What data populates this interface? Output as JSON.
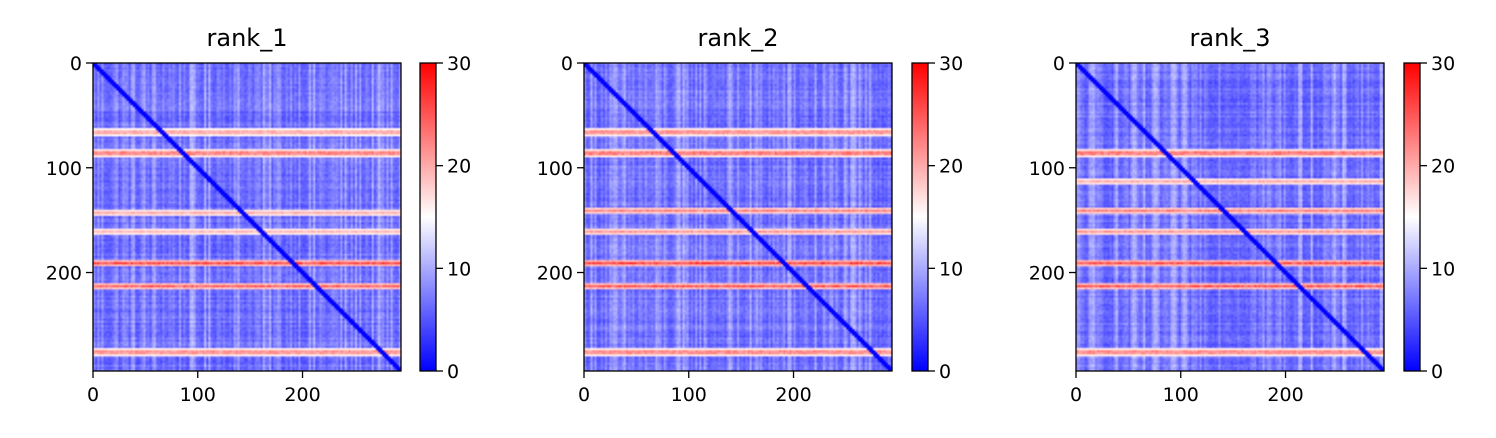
{
  "chart_data": [
    {
      "type": "heatmap",
      "title": "rank_1",
      "xlabel": "",
      "ylabel": "",
      "n": 294,
      "x_ticks": [
        0,
        100,
        200
      ],
      "y_ticks": [
        0,
        100,
        200
      ],
      "colorbar": {
        "ticks": [
          0,
          10,
          20,
          30
        ],
        "vmin": 0,
        "vmax": 30,
        "colormap": "bwr"
      },
      "band_rows": [
        65,
        85,
        142,
        160,
        190,
        212,
        275
      ],
      "band_strength": [
        0.65,
        0.9,
        0.5,
        0.45,
        0.95,
        0.85,
        0.8
      ],
      "grid": false
    },
    {
      "type": "heatmap",
      "title": "rank_2",
      "xlabel": "",
      "ylabel": "",
      "n": 294,
      "x_ticks": [
        0,
        100,
        200
      ],
      "y_ticks": [
        0,
        100,
        200
      ],
      "colorbar": {
        "ticks": [
          0,
          10,
          20,
          30
        ],
        "vmin": 0,
        "vmax": 30,
        "colormap": "bwr"
      },
      "band_rows": [
        65,
        85,
        140,
        160,
        190,
        212,
        275
      ],
      "band_strength": [
        0.8,
        0.95,
        0.7,
        0.6,
        1.0,
        0.9,
        0.85
      ],
      "grid": false
    },
    {
      "type": "heatmap",
      "title": "rank_3",
      "xlabel": "",
      "ylabel": "",
      "n": 294,
      "x_ticks": [
        0,
        100,
        200
      ],
      "y_ticks": [
        0,
        100,
        200
      ],
      "colorbar": {
        "ticks": [
          0,
          10,
          20,
          30
        ],
        "vmin": 0,
        "vmax": 30,
        "colormap": "bwr"
      },
      "band_rows": [
        85,
        112,
        140,
        160,
        190,
        212,
        275
      ],
      "band_strength": [
        0.95,
        0.5,
        0.7,
        0.6,
        0.95,
        0.9,
        0.85
      ],
      "grid": false
    }
  ]
}
